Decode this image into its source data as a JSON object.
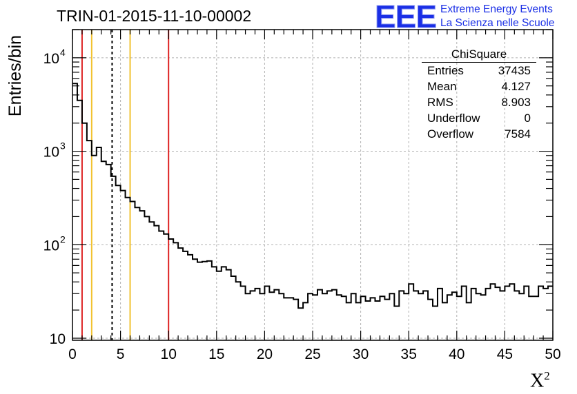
{
  "chart_data": {
    "type": "histogram",
    "title": "TRIN-01-2015-11-10-00002",
    "xlabel": "X",
    "xlabel_sup": "2",
    "ylabel": "Entries/bin",
    "xlim": [
      0,
      50
    ],
    "ylim": [
      9.5,
      20000
    ],
    "yscale": "log",
    "bin_width": 0.5,
    "x_ticks": [
      0,
      5,
      10,
      15,
      20,
      25,
      30,
      35,
      40,
      45,
      50
    ],
    "y_ticks": [
      {
        "value": 10,
        "base": "10",
        "exp": ""
      },
      {
        "value": 100,
        "base": "10",
        "exp": "2"
      },
      {
        "value": 1000,
        "base": "10",
        "exp": "3"
      },
      {
        "value": 10000,
        "base": "10",
        "exp": "4"
      }
    ],
    "values": [
      5300,
      3500,
      2000,
      1300,
      900,
      1100,
      780,
      720,
      540,
      430,
      380,
      320,
      290,
      250,
      230,
      200,
      175,
      160,
      140,
      130,
      115,
      105,
      92,
      85,
      78,
      70,
      65,
      66,
      67,
      58,
      52,
      58,
      54,
      46,
      40,
      36,
      30,
      32,
      34,
      30,
      36,
      31,
      33,
      30,
      27,
      27,
      26,
      21,
      24,
      30,
      29,
      33,
      30,
      32,
      33,
      29,
      28,
      24,
      30,
      24,
      28,
      25,
      27,
      25,
      28,
      26,
      30,
      22,
      32,
      30,
      38,
      32,
      30,
      32,
      26,
      22,
      34,
      24,
      29,
      31,
      28,
      36,
      24,
      34,
      30,
      29,
      34,
      38,
      35,
      32,
      36,
      38,
      32,
      30,
      36,
      28,
      28,
      36,
      34,
      36
    ],
    "vertical_lines": [
      {
        "x": 1,
        "color": "#dd2222",
        "style": "solid"
      },
      {
        "x": 2,
        "color": "#f2c230",
        "style": "solid"
      },
      {
        "x": 4.127,
        "color": "#000000",
        "style": "dashed"
      },
      {
        "x": 6,
        "color": "#f2c230",
        "style": "solid"
      },
      {
        "x": 10,
        "color": "#dd2222",
        "style": "solid"
      }
    ],
    "grid": true
  },
  "stats": {
    "title": "ChiSquare",
    "rows": [
      {
        "label": "Entries",
        "value": "37435"
      },
      {
        "label": "Mean",
        "value": "4.127"
      },
      {
        "label": "RMS",
        "value": "8.903"
      },
      {
        "label": "Underflow",
        "value": "0"
      },
      {
        "label": "Overflow",
        "value": "7584"
      }
    ]
  },
  "logo": {
    "mark": "EEE",
    "line1": "Extreme Energy Events",
    "line2": "La Scienza nelle Scuole",
    "color": "#1a2fe6"
  }
}
